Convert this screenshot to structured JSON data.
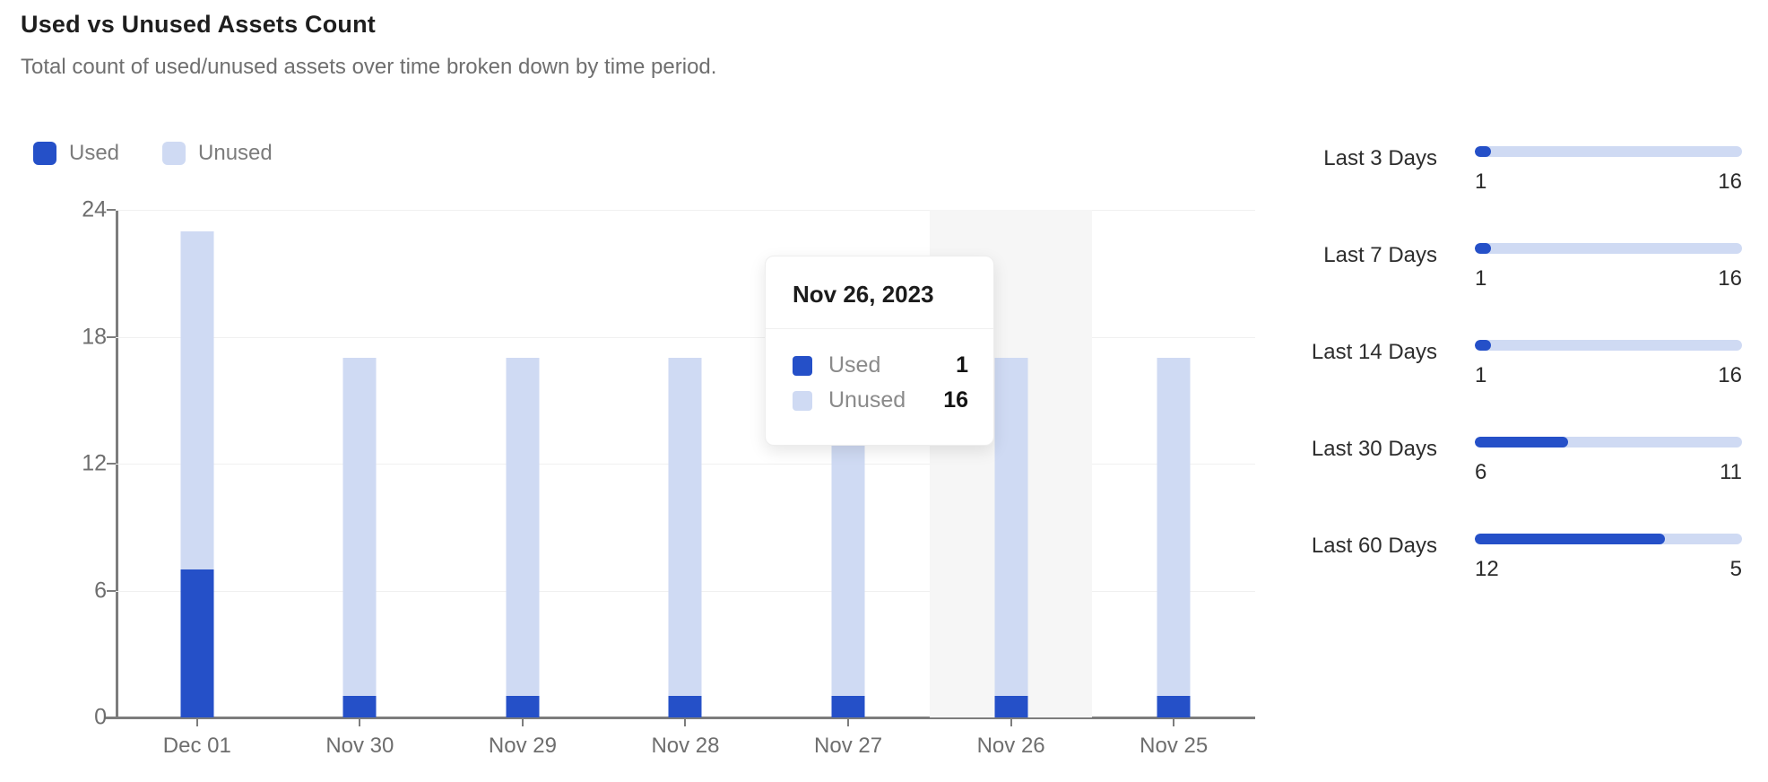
{
  "header": {
    "title": "Used vs Unused Assets Count",
    "subtitle": "Total count of used/unused assets over time broken down by time period."
  },
  "colors": {
    "used": "#2550c8",
    "unused": "#cfdaf3",
    "highlight_band": "#f6f6f6"
  },
  "chart_data": {
    "type": "bar",
    "stacked": true,
    "title": "Used vs Unused Assets Count",
    "categories": [
      "Dec 01",
      "Nov 30",
      "Nov 29",
      "Nov 28",
      "Nov 27",
      "Nov 26",
      "Nov 25"
    ],
    "series": [
      {
        "name": "Used",
        "color": "#2550c8",
        "values": [
          7,
          1,
          1,
          1,
          1,
          1,
          1
        ]
      },
      {
        "name": "Unused",
        "color": "#cfdaf3",
        "values": [
          16,
          16,
          16,
          16,
          16,
          16,
          16
        ]
      }
    ],
    "ylim": [
      0,
      24
    ],
    "yticks": [
      0,
      6,
      12,
      18,
      24
    ],
    "grid": "horizontal",
    "legend_position": "top-left",
    "highlighted_category": "Nov 26"
  },
  "legend": [
    {
      "label": "Used",
      "color": "#2550c8"
    },
    {
      "label": "Unused",
      "color": "#cfdaf3"
    }
  ],
  "tooltip": {
    "title": "Nov 26, 2023",
    "rows": [
      {
        "label": "Used",
        "value": "1",
        "color": "#2550c8"
      },
      {
        "label": "Unused",
        "value": "16",
        "color": "#cfdaf3"
      }
    ]
  },
  "summary_rows": [
    {
      "label": "Last 3 Days",
      "left": "1",
      "right": "16",
      "fill_pct": 6
    },
    {
      "label": "Last 7 Days",
      "left": "1",
      "right": "16",
      "fill_pct": 6
    },
    {
      "label": "Last 14 Days",
      "left": "1",
      "right": "16",
      "fill_pct": 6
    },
    {
      "label": "Last 30 Days",
      "left": "6",
      "right": "11",
      "fill_pct": 35
    },
    {
      "label": "Last 60 Days",
      "left": "12",
      "right": "5",
      "fill_pct": 71
    }
  ]
}
